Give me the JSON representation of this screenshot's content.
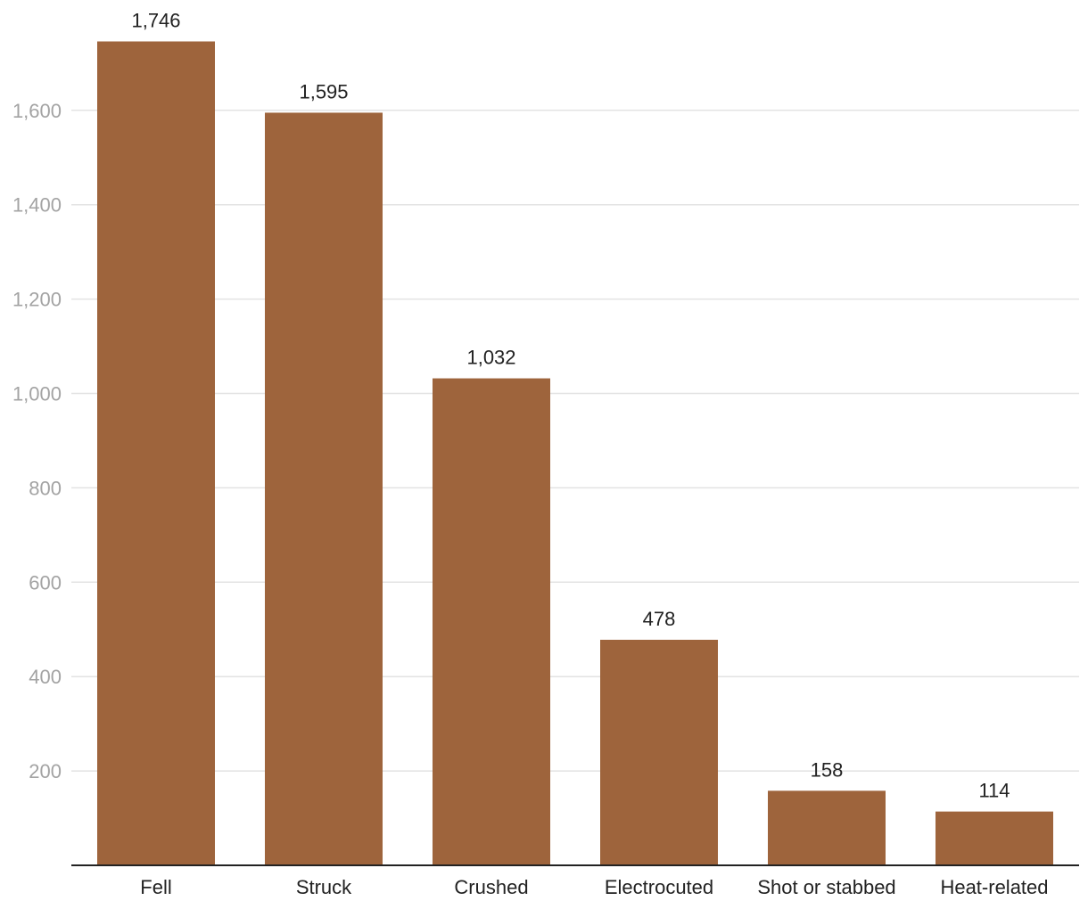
{
  "chart_data": {
    "type": "bar",
    "categories": [
      "Fell",
      "Struck",
      "Crushed",
      "Electrocuted",
      "Shot or stabbed",
      "Heat-related"
    ],
    "values": [
      1746,
      1595,
      1032,
      478,
      158,
      114
    ],
    "data_labels": [
      "1,746",
      "1,595",
      "1,032",
      "478",
      "158",
      "114"
    ],
    "title": "",
    "xlabel": "",
    "ylabel": "",
    "ylim": [
      0,
      1800
    ],
    "yticks": [
      200,
      400,
      600,
      800,
      1000,
      1200,
      1400,
      1600
    ],
    "ytick_labels": [
      "200",
      "400",
      "600",
      "800",
      "1,000",
      "1,200",
      "1,400",
      "1,600"
    ],
    "grid": true,
    "legend": "none",
    "bar_color": "#9e643c"
  }
}
